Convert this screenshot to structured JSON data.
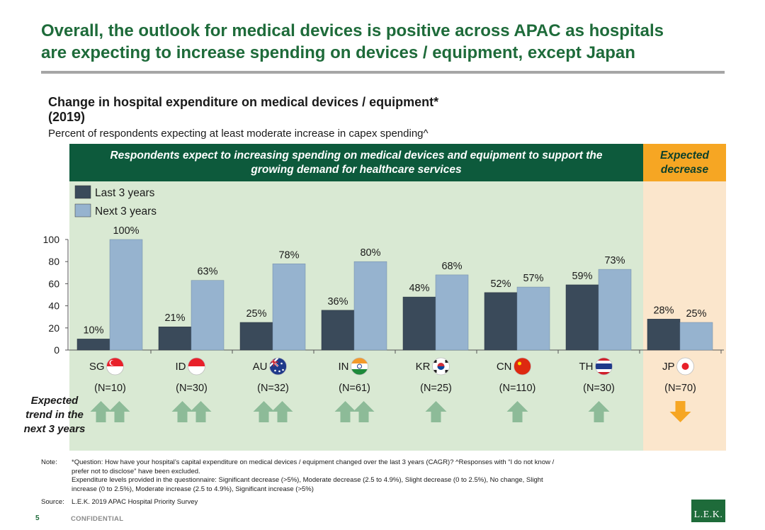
{
  "headline": {
    "line1": "Overall, the outlook for medical devices is positive across APAC as hospitals",
    "line2": "are expecting to increase spending on devices / equipment, except Japan"
  },
  "chart_title": {
    "line1": "Change in hospital expenditure on medical devices / equipment*",
    "line2": "(2019)"
  },
  "chart_subtitle": "Percent of respondents expecting at least moderate increase in capex spending^",
  "band_green": {
    "line1": "Respondents expect to increasing spending on medical devices and equipment to support the",
    "line2": "growing demand for healthcare services"
  },
  "band_orange": {
    "line1": "Expected",
    "line2": "decrease"
  },
  "colors": {
    "brand_green": "#1e6b3a",
    "band_green": "#0d5a3c",
    "panel_green": "#d9e9d3",
    "panel_orange": "#fbe6cc",
    "band_orange": "#f6a623",
    "bar_last": "#3a4a5a",
    "bar_next": "#96b3cf",
    "arrow_up": "#8dbb98",
    "arrow_down": "#f6a623"
  },
  "chart_data": {
    "type": "bar",
    "categories": [
      "SG",
      "ID",
      "AU",
      "IN",
      "KR",
      "CN",
      "TH",
      "JP"
    ],
    "sample_sizes": [
      "(N=10)",
      "(N=30)",
      "(N=32)",
      "(N=61)",
      "(N=25)",
      "(N=110)",
      "(N=30)",
      "(N=70)"
    ],
    "flags": [
      "singapore-flag",
      "indonesia-flag",
      "australia-flag",
      "india-flag",
      "south-korea-flag",
      "china-flag",
      "thailand-flag",
      "japan-flag"
    ],
    "series": [
      {
        "name": "Last 3 years",
        "values": [
          10,
          21,
          25,
          36,
          48,
          52,
          59,
          28
        ],
        "labels": [
          "10%",
          "21%",
          "25%",
          "36%",
          "48%",
          "52%",
          "59%",
          "28%"
        ]
      },
      {
        "name": "Next 3 years",
        "values": [
          100,
          63,
          78,
          80,
          68,
          57,
          73,
          25
        ],
        "labels": [
          "100%",
          "63%",
          "78%",
          "80%",
          "68%",
          "57%",
          "73%",
          "25%"
        ]
      }
    ],
    "yticks": [
      "0",
      "20",
      "40",
      "60",
      "80",
      "100"
    ],
    "ylim": [
      0,
      100
    ],
    "legend": "top-left",
    "grid": false
  },
  "trend": {
    "label_lines": [
      "Expected",
      "trend in the",
      "next 3 years"
    ],
    "arrows": [
      {
        "direction": "up",
        "count": 2
      },
      {
        "direction": "up",
        "count": 2
      },
      {
        "direction": "up",
        "count": 2
      },
      {
        "direction": "up",
        "count": 2
      },
      {
        "direction": "up",
        "count": 1
      },
      {
        "direction": "up",
        "count": 1
      },
      {
        "direction": "up",
        "count": 1
      },
      {
        "direction": "down",
        "count": 1
      }
    ]
  },
  "note": {
    "label": "Note:",
    "lines": [
      "*Question: How have your hospital’s capital expenditure on medical devices / equipment changed over the last 3 years (CAGR)? ^Responses with “I do not know /",
      "prefer not to disclose” have been excluded.",
      "Expenditure levels provided in the questionnaire: Significant decrease (>5%), Moderate decrease (2.5 to 4.9%), Slight decrease (0 to 2.5%), No change, Slight",
      "increase (0 to 2.5%), Moderate increase (2.5 to 4.9%), Significant increase (>5%)"
    ]
  },
  "source": {
    "label": "Source:",
    "text": "L.E.K. 2019 APAC Hospital Priority Survey"
  },
  "footer": {
    "page": "5",
    "confidential": "CONFIDENTIAL",
    "logo": "L.E.K."
  }
}
